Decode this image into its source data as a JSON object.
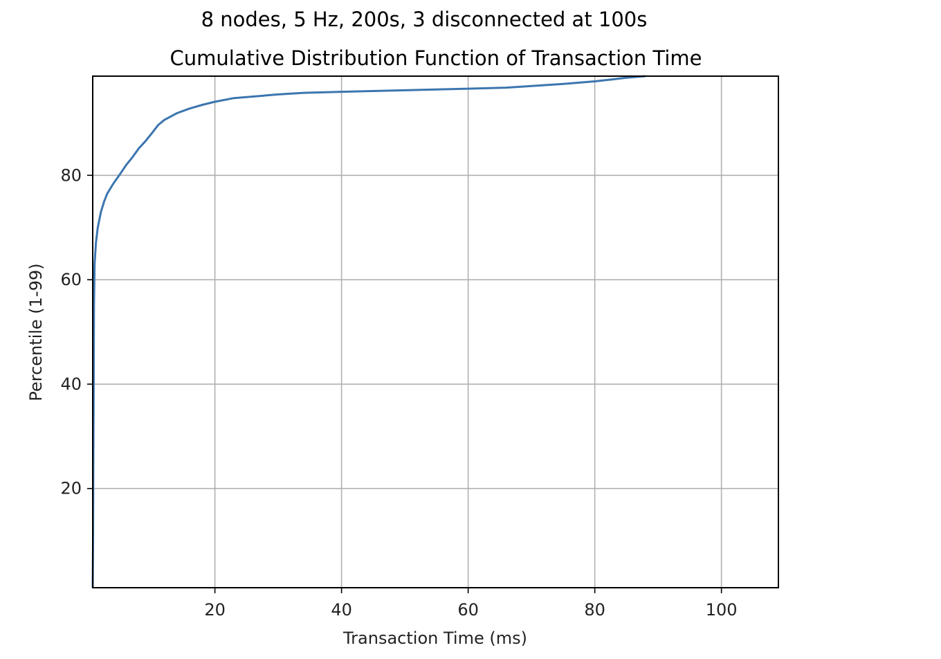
{
  "chart_data": {
    "type": "line",
    "suptitle": "8 nodes, 5 Hz, 200s, 3 disconnected at 100s",
    "title": "Cumulative Distribution Function of Transaction Time",
    "xlabel": "Transaction Time (ms)",
    "ylabel": "Percentile (1-99)",
    "xlim": [
      0.7,
      109
    ],
    "ylim": [
      1,
      99
    ],
    "xticks": [
      20,
      40,
      60,
      80,
      100
    ],
    "yticks": [
      20,
      40,
      60,
      80
    ],
    "grid": true,
    "line_color": "#3b75af",
    "series": [
      {
        "x": [
          0.7,
          0.75,
          0.8,
          0.85,
          0.9,
          1.0,
          1.2,
          1.5,
          2.0,
          2.5,
          3.0,
          4.0,
          5.0,
          6.0,
          7.0,
          8.0,
          9.0,
          10.0,
          11.0,
          12.0,
          14.0,
          16.0,
          18.0,
          20.0,
          23.0,
          27.0,
          30.0,
          34.0,
          40.0,
          50.0,
          60.0,
          66.0,
          70.0,
          75.0,
          80.0,
          83.0,
          85.0,
          87.0,
          88.0
        ],
        "y": [
          1,
          10,
          25,
          40,
          55,
          63,
          67,
          70,
          73,
          75,
          76.5,
          78.5,
          80.2,
          82,
          83.5,
          85.2,
          86.5,
          88,
          89.6,
          90.6,
          91.9,
          92.8,
          93.5,
          94.1,
          94.8,
          95.2,
          95.5,
          95.8,
          96.0,
          96.3,
          96.6,
          96.8,
          97.1,
          97.5,
          98.0,
          98.4,
          98.7,
          98.9,
          99.0
        ]
      }
    ]
  }
}
